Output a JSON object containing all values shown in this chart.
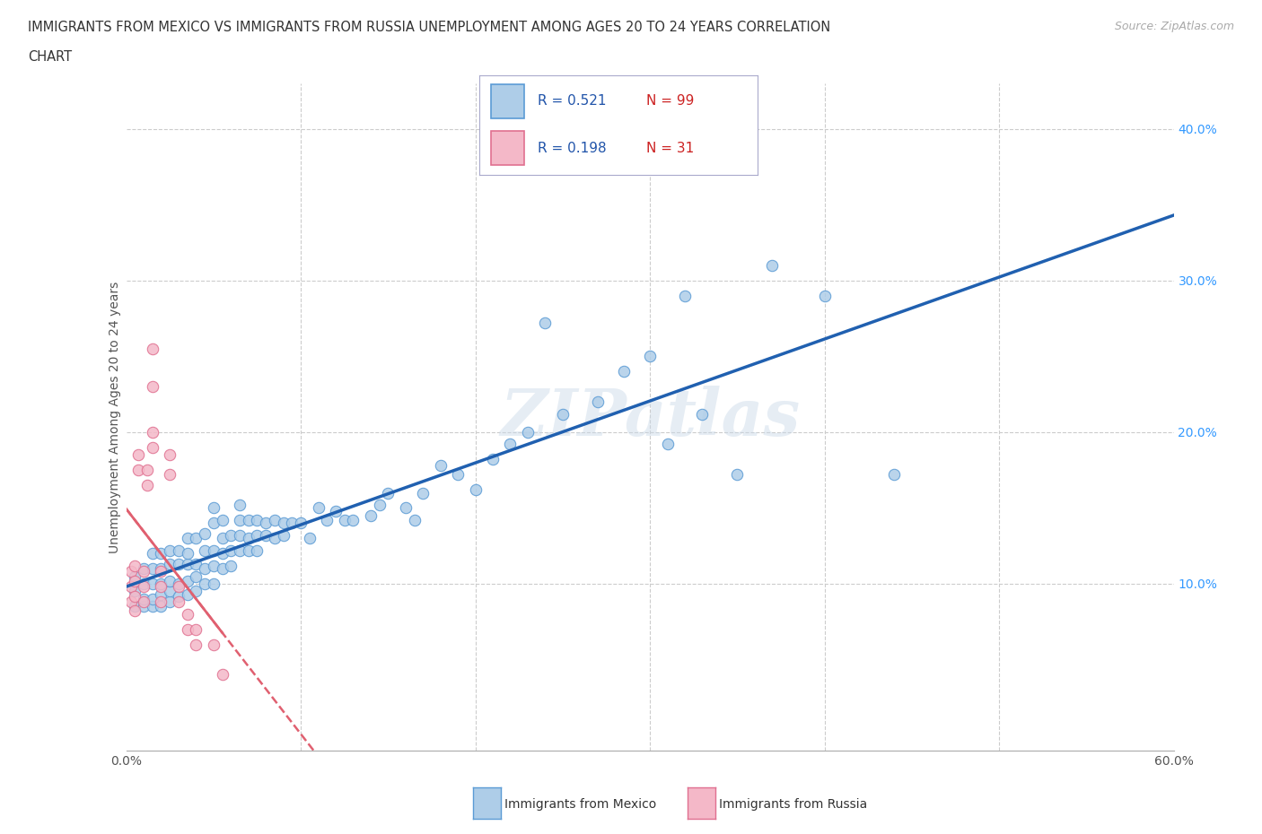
{
  "title_line1": "IMMIGRANTS FROM MEXICO VS IMMIGRANTS FROM RUSSIA UNEMPLOYMENT AMONG AGES 20 TO 24 YEARS CORRELATION",
  "title_line2": "CHART",
  "source": "Source: ZipAtlas.com",
  "ylabel": "Unemployment Among Ages 20 to 24 years",
  "xlim": [
    0.0,
    0.6
  ],
  "ylim": [
    -0.01,
    0.43
  ],
  "xticks": [
    0.0,
    0.1,
    0.2,
    0.3,
    0.4,
    0.5,
    0.6
  ],
  "yticks": [
    0.0,
    0.1,
    0.2,
    0.3,
    0.4
  ],
  "mexico_color": "#aecde8",
  "mexico_edge_color": "#5b9bd5",
  "russia_color": "#f4b8c8",
  "russia_edge_color": "#e07090",
  "mexico_line_color": "#2060b0",
  "russia_line_color": "#e06070",
  "mexico_R": 0.521,
  "mexico_N": 99,
  "russia_R": 0.198,
  "russia_N": 31,
  "watermark": "ZIPatlas",
  "legend_mexico_label": "Immigrants from Mexico",
  "legend_russia_label": "Immigrants from Russia",
  "mexico_scatter": [
    [
      0.005,
      0.085
    ],
    [
      0.005,
      0.095
    ],
    [
      0.005,
      0.105
    ],
    [
      0.01,
      0.085
    ],
    [
      0.01,
      0.09
    ],
    [
      0.01,
      0.1
    ],
    [
      0.01,
      0.11
    ],
    [
      0.015,
      0.085
    ],
    [
      0.015,
      0.09
    ],
    [
      0.015,
      0.1
    ],
    [
      0.015,
      0.11
    ],
    [
      0.015,
      0.12
    ],
    [
      0.02,
      0.085
    ],
    [
      0.02,
      0.093
    ],
    [
      0.02,
      0.1
    ],
    [
      0.02,
      0.11
    ],
    [
      0.02,
      0.12
    ],
    [
      0.025,
      0.088
    ],
    [
      0.025,
      0.095
    ],
    [
      0.025,
      0.102
    ],
    [
      0.025,
      0.113
    ],
    [
      0.025,
      0.122
    ],
    [
      0.03,
      0.092
    ],
    [
      0.03,
      0.1
    ],
    [
      0.03,
      0.113
    ],
    [
      0.03,
      0.122
    ],
    [
      0.035,
      0.093
    ],
    [
      0.035,
      0.102
    ],
    [
      0.035,
      0.113
    ],
    [
      0.035,
      0.12
    ],
    [
      0.035,
      0.13
    ],
    [
      0.04,
      0.095
    ],
    [
      0.04,
      0.105
    ],
    [
      0.04,
      0.113
    ],
    [
      0.04,
      0.13
    ],
    [
      0.045,
      0.1
    ],
    [
      0.045,
      0.11
    ],
    [
      0.045,
      0.122
    ],
    [
      0.045,
      0.133
    ],
    [
      0.05,
      0.1
    ],
    [
      0.05,
      0.112
    ],
    [
      0.05,
      0.122
    ],
    [
      0.05,
      0.14
    ],
    [
      0.05,
      0.15
    ],
    [
      0.055,
      0.11
    ],
    [
      0.055,
      0.12
    ],
    [
      0.055,
      0.13
    ],
    [
      0.055,
      0.142
    ],
    [
      0.06,
      0.112
    ],
    [
      0.06,
      0.122
    ],
    [
      0.06,
      0.132
    ],
    [
      0.065,
      0.122
    ],
    [
      0.065,
      0.132
    ],
    [
      0.065,
      0.142
    ],
    [
      0.065,
      0.152
    ],
    [
      0.07,
      0.122
    ],
    [
      0.07,
      0.13
    ],
    [
      0.07,
      0.142
    ],
    [
      0.075,
      0.122
    ],
    [
      0.075,
      0.132
    ],
    [
      0.075,
      0.142
    ],
    [
      0.08,
      0.132
    ],
    [
      0.08,
      0.14
    ],
    [
      0.085,
      0.13
    ],
    [
      0.085,
      0.142
    ],
    [
      0.09,
      0.132
    ],
    [
      0.09,
      0.14
    ],
    [
      0.095,
      0.14
    ],
    [
      0.1,
      0.14
    ],
    [
      0.105,
      0.13
    ],
    [
      0.11,
      0.15
    ],
    [
      0.115,
      0.142
    ],
    [
      0.12,
      0.148
    ],
    [
      0.125,
      0.142
    ],
    [
      0.13,
      0.142
    ],
    [
      0.14,
      0.145
    ],
    [
      0.145,
      0.152
    ],
    [
      0.15,
      0.16
    ],
    [
      0.16,
      0.15
    ],
    [
      0.165,
      0.142
    ],
    [
      0.17,
      0.16
    ],
    [
      0.18,
      0.178
    ],
    [
      0.19,
      0.172
    ],
    [
      0.2,
      0.162
    ],
    [
      0.21,
      0.182
    ],
    [
      0.22,
      0.192
    ],
    [
      0.23,
      0.2
    ],
    [
      0.24,
      0.272
    ],
    [
      0.25,
      0.212
    ],
    [
      0.27,
      0.22
    ],
    [
      0.285,
      0.24
    ],
    [
      0.3,
      0.25
    ],
    [
      0.31,
      0.192
    ],
    [
      0.32,
      0.29
    ],
    [
      0.33,
      0.212
    ],
    [
      0.35,
      0.172
    ],
    [
      0.37,
      0.31
    ],
    [
      0.4,
      0.29
    ],
    [
      0.44,
      0.172
    ]
  ],
  "russia_scatter": [
    [
      0.003,
      0.088
    ],
    [
      0.003,
      0.098
    ],
    [
      0.003,
      0.108
    ],
    [
      0.005,
      0.082
    ],
    [
      0.005,
      0.092
    ],
    [
      0.005,
      0.102
    ],
    [
      0.005,
      0.112
    ],
    [
      0.007,
      0.175
    ],
    [
      0.007,
      0.185
    ],
    [
      0.01,
      0.088
    ],
    [
      0.01,
      0.098
    ],
    [
      0.01,
      0.108
    ],
    [
      0.012,
      0.165
    ],
    [
      0.012,
      0.175
    ],
    [
      0.015,
      0.19
    ],
    [
      0.015,
      0.2
    ],
    [
      0.015,
      0.23
    ],
    [
      0.015,
      0.255
    ],
    [
      0.02,
      0.088
    ],
    [
      0.02,
      0.098
    ],
    [
      0.02,
      0.108
    ],
    [
      0.025,
      0.172
    ],
    [
      0.025,
      0.185
    ],
    [
      0.03,
      0.088
    ],
    [
      0.03,
      0.098
    ],
    [
      0.035,
      0.07
    ],
    [
      0.035,
      0.08
    ],
    [
      0.04,
      0.06
    ],
    [
      0.04,
      0.07
    ],
    [
      0.05,
      0.06
    ],
    [
      0.055,
      0.04
    ]
  ]
}
